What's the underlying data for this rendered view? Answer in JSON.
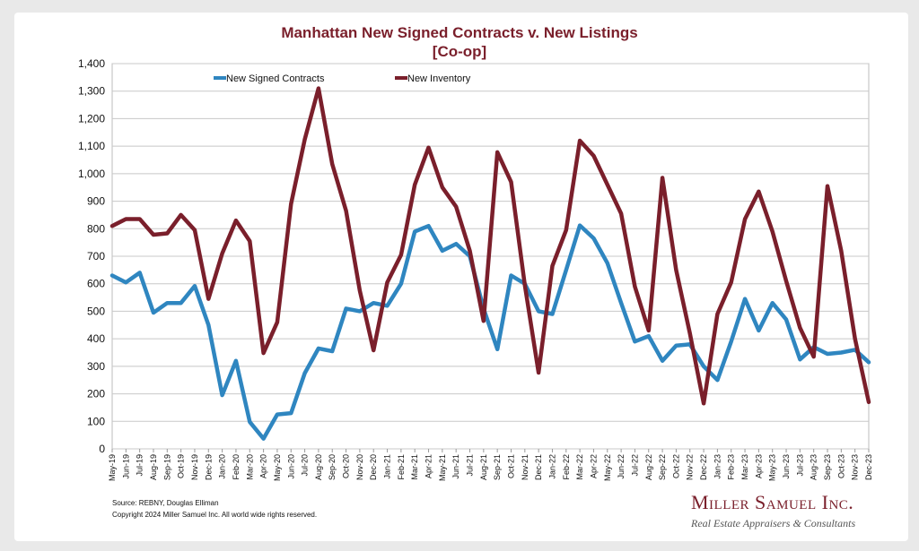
{
  "chart_data": {
    "type": "line",
    "title": "Manhattan New Signed Contracts v. New Listings",
    "subtitle": "[Co-op]",
    "ylim": [
      0,
      1400
    ],
    "yticks": [
      "0",
      "100",
      "200",
      "300",
      "400",
      "500",
      "600",
      "700",
      "800",
      "900",
      "1,000",
      "1,100",
      "1,200",
      "1,300",
      "1,400"
    ],
    "categories": [
      "May-19",
      "Jun-19",
      "Jul-19",
      "Aug-19",
      "Sep-19",
      "Oct-19",
      "Nov-19",
      "Dec-19",
      "Jan-20",
      "Feb-20",
      "Mar-20",
      "Apr-20",
      "May-20",
      "Jun-20",
      "Jul-20",
      "Aug-20",
      "Sep-20",
      "Oct-20",
      "Nov-20",
      "Dec-20",
      "Jan-21",
      "Feb-21",
      "Mar-21",
      "Apr-21",
      "May-21",
      "Jun-21",
      "Jul-21",
      "Aug-21",
      "Sep-21",
      "Oct-21",
      "Nov-21",
      "Dec-21",
      "Jan-22",
      "Feb-22",
      "Mar-22",
      "Apr-22",
      "May-22",
      "Jun-22",
      "Jul-22",
      "Aug-22",
      "Sep-22",
      "Oct-22",
      "Nov-22",
      "Dec-22",
      "Jan-23",
      "Feb-23",
      "Mar-23",
      "Apr-23",
      "May-23",
      "Jun-23",
      "Jul-23",
      "Aug-23",
      "Sep-23",
      "Oct-23",
      "Nov-23",
      "Dec-23"
    ],
    "series": [
      {
        "name": "New Signed Contracts",
        "color": "#2f86c0",
        "values": [
          630,
          605,
          640,
          495,
          530,
          530,
          592,
          450,
          195,
          320,
          98,
          37,
          125,
          130,
          275,
          365,
          355,
          510,
          500,
          530,
          520,
          600,
          790,
          810,
          720,
          745,
          700,
          510,
          362,
          630,
          600,
          500,
          490,
          650,
          812,
          765,
          675,
          530,
          390,
          410,
          320,
          375,
          380,
          300,
          250,
          390,
          545,
          430,
          530,
          470,
          325,
          370,
          345,
          350,
          360,
          315
        ]
      },
      {
        "name": "New Inventory",
        "color": "#7a1f2b",
        "values": [
          810,
          835,
          835,
          778,
          783,
          850,
          795,
          545,
          710,
          830,
          755,
          348,
          460,
          890,
          1125,
          1310,
          1035,
          865,
          575,
          358,
          605,
          705,
          960,
          1095,
          950,
          880,
          720,
          465,
          1078,
          970,
          595,
          277,
          665,
          795,
          1120,
          1065,
          960,
          855,
          590,
          430,
          985,
          650,
          420,
          165,
          490,
          605,
          835,
          935,
          790,
          610,
          440,
          335,
          955,
          720,
          400,
          170
        ]
      }
    ],
    "legend": "top-left",
    "grid": true
  },
  "footer": {
    "source": "Source: REBNY, Douglas Elliman",
    "copyright": "Copyright 2024 Miller Samuel Inc.  All world wide rights reserved."
  },
  "logo": {
    "name": "Miller Samuel Inc.",
    "tagline": "Real Estate Appraisers & Consultants"
  }
}
